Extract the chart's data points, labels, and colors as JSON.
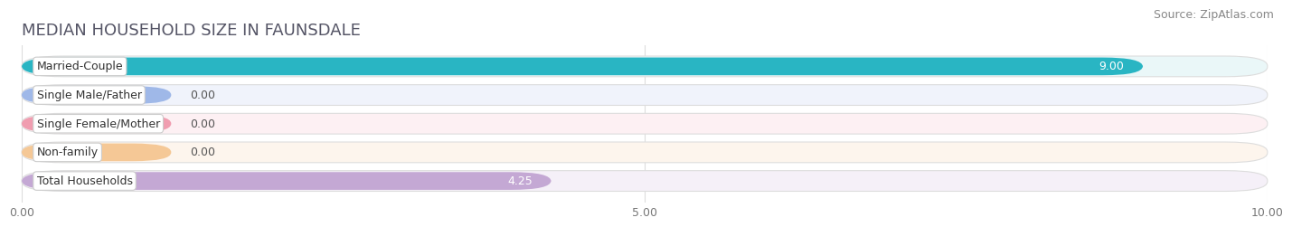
{
  "title": "MEDIAN HOUSEHOLD SIZE IN FAUNSDALE",
  "source": "Source: ZipAtlas.com",
  "categories": [
    "Married-Couple",
    "Single Male/Father",
    "Single Female/Mother",
    "Non-family",
    "Total Households"
  ],
  "values": [
    9.0,
    0.0,
    0.0,
    0.0,
    4.25
  ],
  "bar_colors": [
    "#29b5c3",
    "#9fb8e8",
    "#f09db0",
    "#f5c896",
    "#c4a8d4"
  ],
  "bar_bg_colors": [
    "#eaf7f8",
    "#f0f3fb",
    "#fdf0f3",
    "#fdf5ed",
    "#f5f0f8"
  ],
  "value_labels": [
    "9.00",
    "0.00",
    "0.00",
    "0.00",
    "4.25"
  ],
  "value_inside": [
    true,
    false,
    false,
    false,
    false
  ],
  "zero_bar_width": 1.2,
  "xlim": [
    0,
    10
  ],
  "xticks": [
    0.0,
    5.0,
    10.0
  ],
  "xtick_labels": [
    "0.00",
    "5.00",
    "10.00"
  ],
  "background_color": "#ffffff",
  "row_bg_odd": "#f7f7f7",
  "row_bg_even": "#ffffff",
  "title_fontsize": 13,
  "source_fontsize": 9,
  "label_fontsize": 9,
  "value_fontsize": 9,
  "bar_height": 0.72,
  "title_color": "#555566",
  "label_color": "#333333",
  "value_color_inside": "#ffffff",
  "value_color_outside": "#555555",
  "grid_color": "#dddddd"
}
